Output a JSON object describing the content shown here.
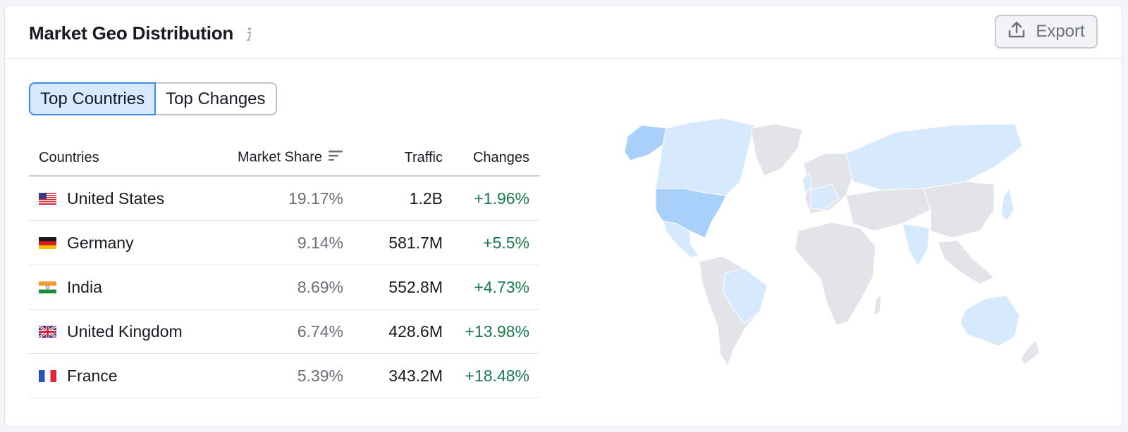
{
  "widget": {
    "title": "Market Geo Distribution",
    "export_label": "Export"
  },
  "tabs": [
    {
      "label": "Top Countries",
      "active": true
    },
    {
      "label": "Top Changes",
      "active": false
    }
  ],
  "table": {
    "headers": {
      "country": "Countries",
      "share": "Market Share",
      "traffic": "Traffic",
      "changes": "Changes"
    },
    "rows": [
      {
        "country": "United States",
        "flag": "us-flag",
        "share": "19.17%",
        "traffic": "1.2B",
        "change": "+1.96%"
      },
      {
        "country": "Germany",
        "flag": "de-flag",
        "share": "9.14%",
        "traffic": "581.7M",
        "change": "+5.5%"
      },
      {
        "country": "India",
        "flag": "in-flag",
        "share": "8.69%",
        "traffic": "552.8M",
        "change": "+4.73%"
      },
      {
        "country": "United Kingdom",
        "flag": "gb-flag",
        "share": "6.74%",
        "traffic": "428.6M",
        "change": "+13.98%"
      },
      {
        "country": "France",
        "flag": "fr-flag",
        "share": "5.39%",
        "traffic": "343.2M",
        "change": "+18.48%"
      }
    ]
  },
  "colors": {
    "positive_change": "#1a7a4b",
    "map_highlight_strong": "#a9d0fb",
    "map_highlight_light": "#d6e9fd",
    "map_neutral": "#e3e4e9",
    "tab_active_bg": "#d6e9ff",
    "tab_active_border": "#3f8be4"
  }
}
